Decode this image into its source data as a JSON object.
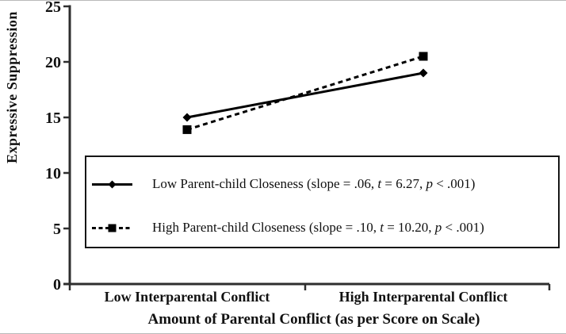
{
  "figure": {
    "background": "#ffffff",
    "text_color": "#111111",
    "axis_color": "#2e2e2e",
    "series_color": "#000000"
  },
  "chart_data": {
    "type": "line",
    "title": "",
    "xlabel": "Amount of Parental Conflict (as per Score on Scale)",
    "ylabel": "Expressive Suppression",
    "categories": [
      "Low Interparental Conflict",
      "High Interparental Conflict"
    ],
    "ylim": [
      0,
      25
    ],
    "yticks": [
      0,
      5,
      10,
      15,
      20,
      25
    ],
    "grid": false,
    "legend_position": "boxed, inside lower-left of plot area",
    "series": [
      {
        "name": "Low Parent-child Closeness",
        "values": [
          15.0,
          19.0
        ],
        "line_style": "solid",
        "marker": "diamond",
        "stats": "slope = .06, t = 6.27, p < .001"
      },
      {
        "name": "High Parent-child Closeness",
        "values": [
          13.9,
          20.5
        ],
        "line_style": "dashed",
        "marker": "square",
        "stats": "slope = .10, t = 10.20, p < .001"
      }
    ]
  },
  "legend": {
    "items": [
      {
        "line_style": "solid",
        "marker": "diamond",
        "segments": [
          {
            "text": "Low Parent-child Closeness (slope = .06, ",
            "italic": false
          },
          {
            "text": "t",
            "italic": true
          },
          {
            "text": " = 6.27, ",
            "italic": false
          },
          {
            "text": "p",
            "italic": true
          },
          {
            "text": " < .001)",
            "italic": false
          }
        ]
      },
      {
        "line_style": "dashed",
        "marker": "square",
        "segments": [
          {
            "text": "High Parent-child Closeness (slope = .10, ",
            "italic": false
          },
          {
            "text": "t",
            "italic": true
          },
          {
            "text": " = 10.20, ",
            "italic": false
          },
          {
            "text": "p",
            "italic": true
          },
          {
            "text": " < .001)",
            "italic": false
          }
        ]
      }
    ]
  }
}
